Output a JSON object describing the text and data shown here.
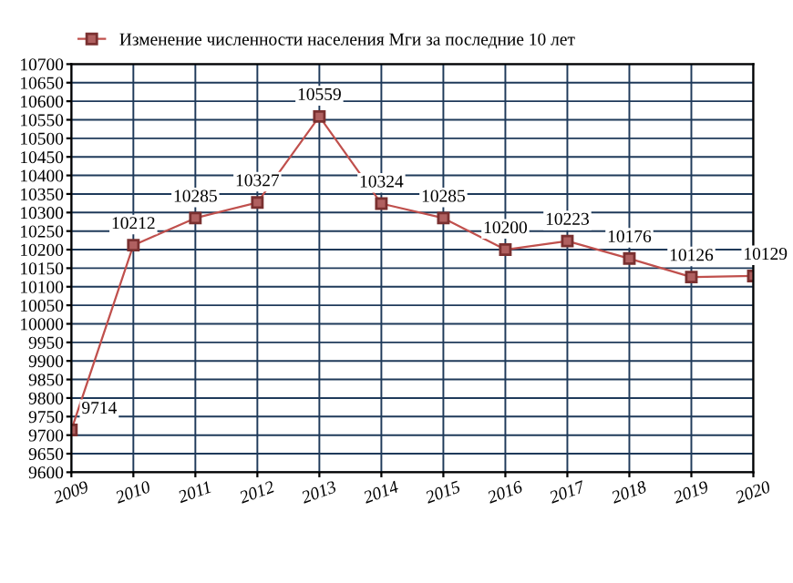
{
  "chart_data": {
    "type": "line",
    "x": [
      2009,
      2010,
      2011,
      2012,
      2013,
      2014,
      2015,
      2016,
      2017,
      2018,
      2019,
      2020
    ],
    "series": [
      {
        "name": "Изменение численности населения Мги за последние 10 лет",
        "color": "#c0504d",
        "values": [
          9714,
          10212,
          10285,
          10327,
          10559,
          10324,
          10285,
          10200,
          10223,
          10176,
          10126,
          10129
        ]
      }
    ],
    "xlim": [
      2009,
      2020
    ],
    "xticks": [
      2009,
      2010,
      2011,
      2012,
      2013,
      2014,
      2015,
      2016,
      2017,
      2018,
      2019,
      2020
    ],
    "ylim": [
      9600,
      10700
    ],
    "yticks": [
      9600,
      9650,
      9700,
      9750,
      9800,
      9850,
      9900,
      9950,
      10000,
      10050,
      10100,
      10150,
      10200,
      10250,
      10300,
      10350,
      10400,
      10450,
      10500,
      10550,
      10600,
      10650,
      10700
    ],
    "grid": true,
    "legend": "top",
    "marker": "square",
    "line_style": "solid",
    "data_labels": true
  }
}
